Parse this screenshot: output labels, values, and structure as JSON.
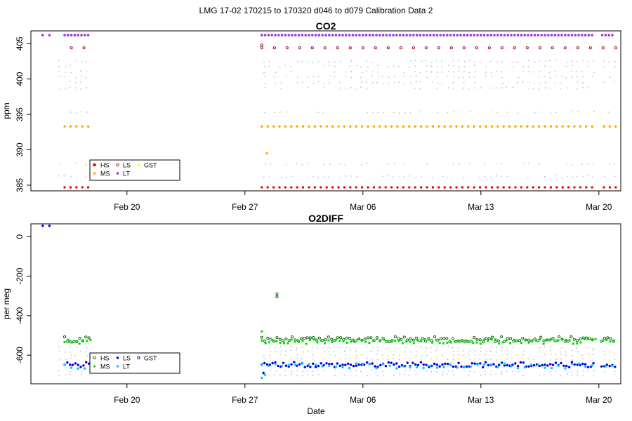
{
  "figure": {
    "title": "LMG   17-02    170215 to 170320    d046 to d079   Calibration Data 2",
    "xlabel": "Date",
    "date_ticks": [
      "Feb 20",
      "Feb 27",
      "Mar 06",
      "Mar 13",
      "Mar 20"
    ]
  },
  "chart_data": [
    {
      "type": "scatter",
      "title": "CO2",
      "xlabel": "",
      "ylabel": "ppm",
      "x_unit": "day of year 2017",
      "xlim": [
        45.3,
        80.3
      ],
      "ylim": [
        384.2,
        406.8
      ],
      "yticks": [
        385,
        390,
        395,
        400,
        405
      ],
      "grid": false,
      "legend": {
        "position": "bottom-left",
        "entries": [
          "HS",
          "MS",
          "LS",
          "LT",
          "GST"
        ]
      },
      "gaps_doy": [
        [
          48.9,
          59.0
        ],
        [
          78.8,
          79.1
        ]
      ],
      "series": [
        {
          "name": "HS",
          "color": "#dd0000",
          "marker": "square",
          "value": 384.7,
          "x_from": 47.3,
          "x_to": 48.9,
          "x_from2": 59.0,
          "x_to2": 80.0,
          "step": 0.35
        },
        {
          "name": "MS",
          "color": "#ffa500",
          "marker": "circle",
          "value": 393.3,
          "x_from": 47.3,
          "x_to": 48.9,
          "x_from2": 59.0,
          "x_to2": 80.0,
          "step": 0.35
        },
        {
          "name": "LS",
          "color": "#a00000",
          "marker": "circle-open",
          "value": 404.4,
          "x_from": 47.7,
          "x_to": 48.9,
          "x_from2": 59.0,
          "x_to2": 80.0,
          "step": 0.75
        },
        {
          "name": "LT",
          "color": "#a020f0",
          "marker": "circle",
          "value": 406.2,
          "x_from": 47.3,
          "x_to": 48.9,
          "x_from2": 59.0,
          "x_to2": 80.0,
          "step": 0.2
        },
        {
          "name": "GST",
          "color": "#ffff00",
          "marker": "circle",
          "value": null
        }
      ],
      "extra_points": [
        {
          "series": "LT",
          "x": 46.0,
          "y": 406.2
        },
        {
          "series": "LT",
          "x": 46.4,
          "y": 406.2
        },
        {
          "series": "MS",
          "x": 59.3,
          "y": 389.5
        },
        {
          "series": "LS",
          "x": 59.0,
          "y": 404.8
        }
      ],
      "background": {
        "color": "#c0c0c0",
        "levels": [
          386.2,
          388.0,
          395.3,
          398.7,
          399.5,
          400.3,
          401.0,
          401.8,
          402.5
        ]
      }
    },
    {
      "type": "scatter",
      "title": "O2DIFF",
      "xlabel": "Date",
      "ylabel": "per meg",
      "x_unit": "day of year 2017",
      "xlim": [
        45.3,
        80.3
      ],
      "ylim": [
        -745,
        65
      ],
      "yticks": [
        0,
        -200,
        -400,
        -600
      ],
      "grid": false,
      "legend": {
        "position": "bottom-left",
        "entries": [
          "HS",
          "MS",
          "LS",
          "LT",
          "GST"
        ]
      },
      "gaps_doy": [
        [
          48.9,
          59.0
        ],
        [
          78.8,
          79.1
        ]
      ],
      "series": [
        {
          "name": "HS",
          "color": "#006400",
          "marker": "circle-open",
          "value": -520,
          "x_from": 47.3,
          "x_to": 48.9,
          "x_from2": 59.0,
          "x_to2": 80.0,
          "step": 0.18
        },
        {
          "name": "MS",
          "color": "#00dd00",
          "marker": "square",
          "value": -530,
          "x_from": 47.3,
          "x_to": 48.9,
          "x_from2": 59.0,
          "x_to2": 80.0,
          "step": 0.22
        },
        {
          "name": "LS",
          "color": "#0000ee",
          "marker": "circle",
          "value": -648,
          "x_from": 47.3,
          "x_to": 48.9,
          "x_from2": 59.0,
          "x_to2": 80.0,
          "step": 0.16
        },
        {
          "name": "LT",
          "color": "#00ccee",
          "marker": "circle",
          "value": -655,
          "x_from": 47.3,
          "x_to": 48.9,
          "x_from2": 59.0,
          "x_to2": 80.0,
          "step": 0.4
        },
        {
          "name": "GST",
          "color": "#000080",
          "marker": "square-open",
          "value": null
        }
      ],
      "extra_points": [
        {
          "series": "LT",
          "x": 46.0,
          "y": 55
        },
        {
          "series": "LS",
          "x": 46.0,
          "y": 55
        },
        {
          "series": "LS",
          "x": 46.4,
          "y": 55
        },
        {
          "series": "HS",
          "x": 59.9,
          "y": -290
        },
        {
          "series": "HS",
          "x": 59.9,
          "y": -305
        },
        {
          "series": "MS",
          "x": 59.0,
          "y": -480
        },
        {
          "series": "LT",
          "x": 59.0,
          "y": -715
        },
        {
          "series": "LT",
          "x": 59.2,
          "y": -700
        },
        {
          "series": "LS",
          "x": 59.1,
          "y": -690
        }
      ],
      "background": {
        "color": "#c0c0c0",
        "levels": [
          -560,
          -580,
          -600,
          -620,
          -680,
          -700
        ]
      }
    }
  ]
}
